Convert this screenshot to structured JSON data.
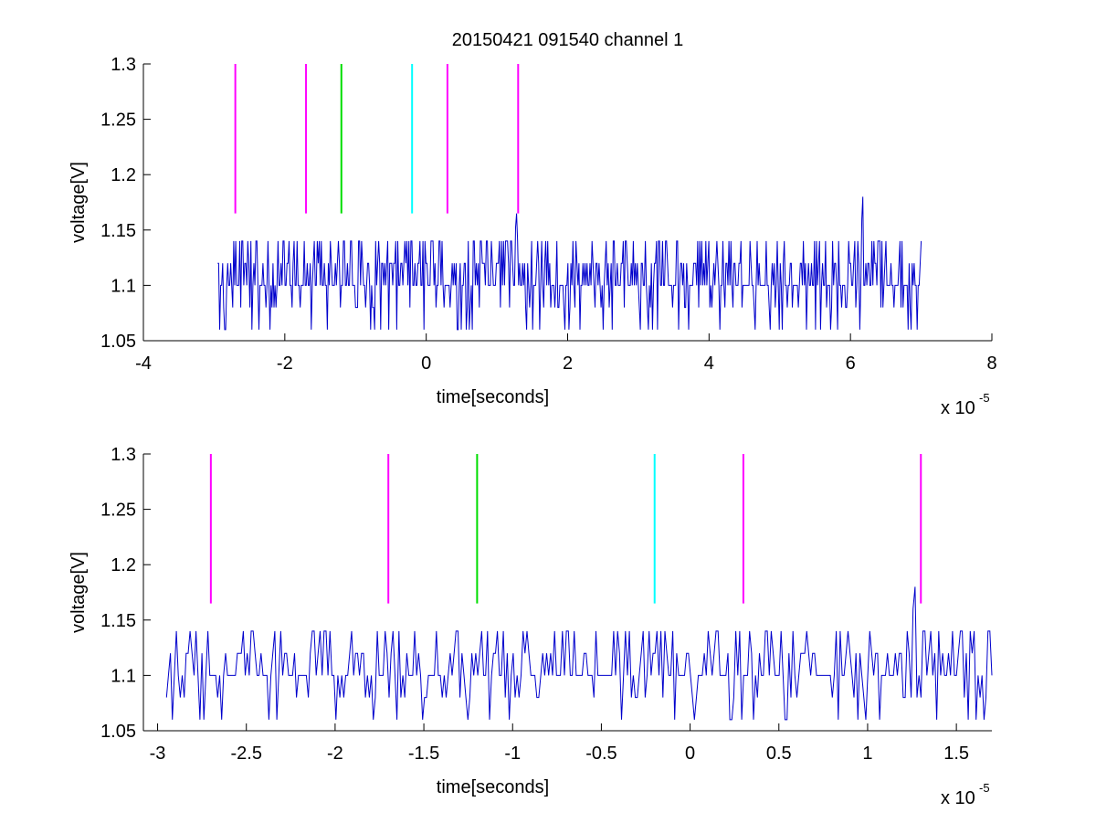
{
  "chart_data": [
    {
      "type": "line",
      "title": "20150421 091540 channel 1",
      "xlabel": "time[seconds]",
      "ylabel": "voltage[V]",
      "x_multiplier": "x 10",
      "x_multiplier_exp": "-5",
      "xlim": [
        -4,
        8
      ],
      "ylim": [
        1.05,
        1.3
      ],
      "xticks": [
        -4,
        -2,
        0,
        2,
        4,
        6,
        8
      ],
      "xtick_labels": [
        "-4",
        "-2",
        "0",
        "2",
        "4",
        "6",
        "8"
      ],
      "yticks": [
        1.05,
        1.1,
        1.15,
        1.2,
        1.25,
        1.3
      ],
      "ytick_labels": [
        "1.05",
        "1.1",
        "1.15",
        "1.2",
        "1.25",
        "1.3"
      ],
      "grid": false,
      "series_color": "#0000cc",
      "signal": {
        "x_start": -2.95,
        "x_end": 7.0,
        "levels": [
          1.06,
          1.08,
          1.1,
          1.12,
          1.14
        ],
        "baseline": 1.1,
        "spikes": [
          {
            "x": 1.28,
            "y": 1.165
          },
          {
            "x": 6.18,
            "y": 1.18
          }
        ]
      },
      "markers": [
        {
          "x": -2.7,
          "y0": 1.165,
          "y1": 1.3,
          "color": "#ff00ff"
        },
        {
          "x": -1.7,
          "y0": 1.165,
          "y1": 1.3,
          "color": "#ff00ff"
        },
        {
          "x": -1.2,
          "y0": 1.165,
          "y1": 1.3,
          "color": "#00dd00"
        },
        {
          "x": -0.2,
          "y0": 1.165,
          "y1": 1.3,
          "color": "#00ffff"
        },
        {
          "x": 0.3,
          "y0": 1.165,
          "y1": 1.3,
          "color": "#ff00ff"
        },
        {
          "x": 1.3,
          "y0": 1.165,
          "y1": 1.3,
          "color": "#ff00ff"
        }
      ]
    },
    {
      "type": "line",
      "title": "",
      "xlabel": "time[seconds]",
      "ylabel": "voltage[V]",
      "x_multiplier": "x 10",
      "x_multiplier_exp": "-5",
      "xlim": [
        -3.08,
        1.7
      ],
      "ylim": [
        1.05,
        1.3
      ],
      "xticks": [
        -3,
        -2.5,
        -2,
        -1.5,
        -1,
        -0.5,
        0,
        0.5,
        1,
        1.5
      ],
      "xtick_labels": [
        "-3",
        "-2.5",
        "-2",
        "-1.5",
        "-1",
        "-0.5",
        "0",
        "0.5",
        "1",
        "1.5"
      ],
      "yticks": [
        1.05,
        1.1,
        1.15,
        1.2,
        1.25,
        1.3
      ],
      "ytick_labels": [
        "1.05",
        "1.1",
        "1.15",
        "1.2",
        "1.25",
        "1.3"
      ],
      "grid": false,
      "series_color": "#0000cc",
      "signal": {
        "x_start": -2.95,
        "x_end": 1.7,
        "levels": [
          1.06,
          1.08,
          1.1,
          1.12,
          1.14
        ],
        "baseline": 1.1,
        "spikes": [
          {
            "x": 1.27,
            "y": 1.18
          }
        ]
      },
      "markers": [
        {
          "x": -2.7,
          "y0": 1.165,
          "y1": 1.3,
          "color": "#ff00ff"
        },
        {
          "x": -1.7,
          "y0": 1.165,
          "y1": 1.3,
          "color": "#ff00ff"
        },
        {
          "x": -1.2,
          "y0": 1.165,
          "y1": 1.3,
          "color": "#00dd00"
        },
        {
          "x": -0.2,
          "y0": 1.165,
          "y1": 1.3,
          "color": "#00ffff"
        },
        {
          "x": 0.3,
          "y0": 1.165,
          "y1": 1.3,
          "color": "#ff00ff"
        },
        {
          "x": 1.3,
          "y0": 1.165,
          "y1": 1.3,
          "color": "#ff00ff"
        }
      ]
    }
  ]
}
